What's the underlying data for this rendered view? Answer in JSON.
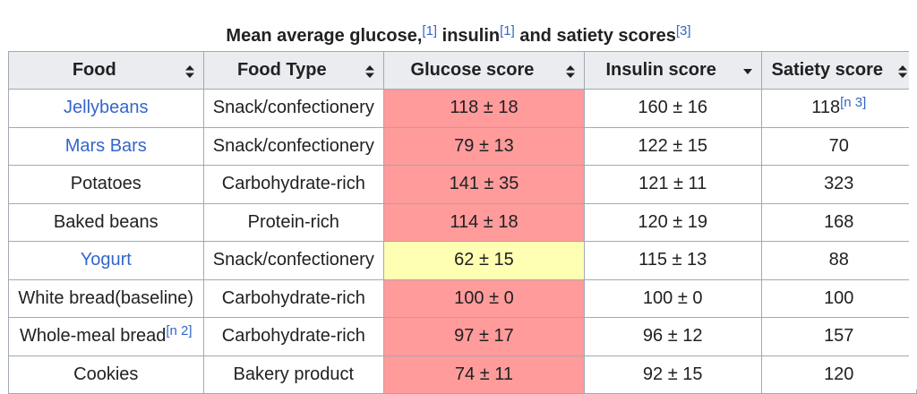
{
  "caption": {
    "part1": "Mean average glucose,",
    "ref1": "[1]",
    "part2": " insulin",
    "ref2": "[1]",
    "part3": " and satiety scores",
    "ref3": "[3]"
  },
  "colors": {
    "high": "#ff9b9b",
    "medium": "#ffffb3",
    "link": "#3366cc",
    "header_bg": "#eaecf0"
  },
  "columns": [
    {
      "label": "Food",
      "sort_icon": "sort-both-icon"
    },
    {
      "label": "Food Type",
      "sort_icon": "sort-both-icon"
    },
    {
      "label": "Glucose score",
      "sort_icon": "sort-both-icon"
    },
    {
      "label": "Insulin score",
      "sort_icon": "sort-descending-icon"
    },
    {
      "label": "Satiety score",
      "sort_icon": "sort-both-icon"
    }
  ],
  "rows": [
    {
      "food": "Jellybeans",
      "food_ref": "",
      "link": true,
      "type": "Snack/confectionery",
      "glucose": "118 ± 18",
      "glucose_level": "high",
      "insulin": "160 ± 16",
      "satiety": "118",
      "satiety_ref": "[n 3]"
    },
    {
      "food": "Mars Bars",
      "food_ref": "",
      "link": true,
      "type": "Snack/confectionery",
      "glucose": "79 ± 13",
      "glucose_level": "high",
      "insulin": "122 ± 15",
      "satiety": "70",
      "satiety_ref": ""
    },
    {
      "food": "Potatoes",
      "food_ref": "",
      "link": false,
      "type": "Carbohydrate-rich",
      "glucose": "141 ± 35",
      "glucose_level": "high",
      "insulin": "121 ± 11",
      "satiety": "323",
      "satiety_ref": ""
    },
    {
      "food": "Baked beans",
      "food_ref": "",
      "link": false,
      "type": "Protein-rich",
      "glucose": "114 ± 18",
      "glucose_level": "high",
      "insulin": "120 ± 19",
      "satiety": "168",
      "satiety_ref": ""
    },
    {
      "food": "Yogurt",
      "food_ref": "",
      "link": true,
      "type": "Snack/confectionery",
      "glucose": "62 ± 15",
      "glucose_level": "medium",
      "insulin": "115 ± 13",
      "satiety": "88",
      "satiety_ref": ""
    },
    {
      "food": "White bread(baseline)",
      "food_ref": "",
      "link": false,
      "type": "Carbohydrate-rich",
      "glucose": "100 ± 0",
      "glucose_level": "high",
      "insulin": "100 ± 0",
      "satiety": "100",
      "satiety_ref": ""
    },
    {
      "food": "Whole-meal bread",
      "food_ref": "[n 2]",
      "link": false,
      "type": "Carbohydrate-rich",
      "glucose": "97 ± 17",
      "glucose_level": "high",
      "insulin": "96 ± 12",
      "satiety": "157",
      "satiety_ref": ""
    },
    {
      "food": "Cookies",
      "food_ref": "",
      "link": false,
      "type": "Bakery product",
      "glucose": "74 ± 11",
      "glucose_level": "high",
      "insulin": "92 ± 15",
      "satiety": "120",
      "satiety_ref": ""
    }
  ]
}
